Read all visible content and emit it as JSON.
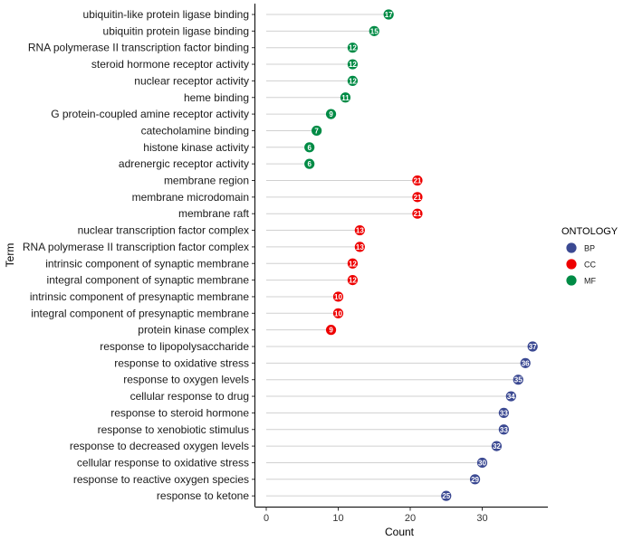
{
  "chart_data": {
    "type": "lollipop",
    "xlabel": "Count",
    "ylabel": "Term",
    "xlim": [
      -1.5,
      38.5
    ],
    "xticks": [
      0,
      10,
      20,
      30
    ],
    "grid": false,
    "legend": {
      "title": "ONTOLOGY",
      "position": "right",
      "entries": [
        {
          "name": "BP",
          "color": "#3B4992"
        },
        {
          "name": "CC",
          "color": "#EE0000"
        },
        {
          "name": "MF",
          "color": "#008B45"
        }
      ]
    },
    "points": [
      {
        "term": "ubiquitin-like protein ligase binding",
        "count": 17,
        "ontology": "MF"
      },
      {
        "term": "ubiquitin protein ligase binding",
        "count": 15,
        "ontology": "MF"
      },
      {
        "term": "RNA polymerase II transcription factor binding",
        "count": 12,
        "ontology": "MF"
      },
      {
        "term": "steroid hormone receptor activity",
        "count": 12,
        "ontology": "MF"
      },
      {
        "term": "nuclear receptor activity",
        "count": 12,
        "ontology": "MF"
      },
      {
        "term": "heme binding",
        "count": 11,
        "ontology": "MF"
      },
      {
        "term": "G protein-coupled amine receptor activity",
        "count": 9,
        "ontology": "MF"
      },
      {
        "term": "catecholamine binding",
        "count": 7,
        "ontology": "MF"
      },
      {
        "term": "histone kinase activity",
        "count": 6,
        "ontology": "MF"
      },
      {
        "term": "adrenergic receptor activity",
        "count": 6,
        "ontology": "MF"
      },
      {
        "term": "membrane region",
        "count": 21,
        "ontology": "CC"
      },
      {
        "term": "membrane microdomain",
        "count": 21,
        "ontology": "CC"
      },
      {
        "term": "membrane raft",
        "count": 21,
        "ontology": "CC"
      },
      {
        "term": "nuclear transcription factor complex",
        "count": 13,
        "ontology": "CC"
      },
      {
        "term": "RNA polymerase II transcription factor complex",
        "count": 13,
        "ontology": "CC"
      },
      {
        "term": "intrinsic component of synaptic membrane",
        "count": 12,
        "ontology": "CC"
      },
      {
        "term": "integral component of synaptic membrane",
        "count": 12,
        "ontology": "CC"
      },
      {
        "term": "intrinsic component of presynaptic membrane",
        "count": 10,
        "ontology": "CC"
      },
      {
        "term": "integral component of presynaptic membrane",
        "count": 10,
        "ontology": "CC"
      },
      {
        "term": "protein kinase complex",
        "count": 9,
        "ontology": "CC"
      },
      {
        "term": "response to lipopolysaccharide",
        "count": 37,
        "ontology": "BP"
      },
      {
        "term": "response to oxidative stress",
        "count": 36,
        "ontology": "BP"
      },
      {
        "term": "response to oxygen levels",
        "count": 35,
        "ontology": "BP"
      },
      {
        "term": "cellular response to drug",
        "count": 34,
        "ontology": "BP"
      },
      {
        "term": "response to steroid hormone",
        "count": 33,
        "ontology": "BP"
      },
      {
        "term": "response to xenobiotic stimulus",
        "count": 33,
        "ontology": "BP"
      },
      {
        "term": "response to decreased oxygen levels",
        "count": 32,
        "ontology": "BP"
      },
      {
        "term": "cellular response to oxidative stress",
        "count": 30,
        "ontology": "BP"
      },
      {
        "term": "response to reactive oxygen species",
        "count": 29,
        "ontology": "BP"
      },
      {
        "term": "response to ketone",
        "count": 25,
        "ontology": "BP"
      }
    ]
  }
}
